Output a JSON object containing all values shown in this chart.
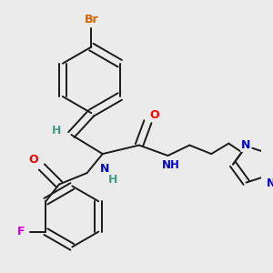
{
  "background_color": "#ebebeb",
  "bond_color": "#1a1a1a",
  "atom_colors": {
    "Br": "#cc6600",
    "F": "#cc00cc",
    "O": "#ff0000",
    "N": "#0000cc",
    "H": "#4a9a8a",
    "C": "#1a1a1a"
  },
  "figsize": [
    3.0,
    3.0
  ],
  "dpi": 100,
  "xlim": [
    0,
    300
  ],
  "ylim": [
    0,
    300
  ]
}
